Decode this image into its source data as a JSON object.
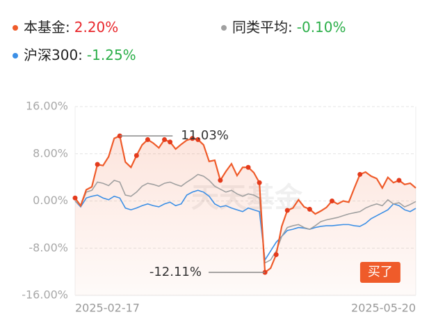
{
  "chart_data": {
    "type": "line",
    "watermark": "天天基金",
    "categories": [
      "2025-02-17",
      null,
      null,
      null,
      null,
      null,
      null,
      null,
      null,
      null,
      null,
      null,
      null,
      null,
      null,
      null,
      null,
      null,
      null,
      null,
      null,
      null,
      null,
      null,
      null,
      null,
      null,
      null,
      null,
      null,
      null,
      null,
      null,
      null,
      null,
      null,
      null,
      null,
      null,
      null,
      null,
      null,
      null,
      null,
      null,
      null,
      null,
      null,
      null,
      null,
      null,
      null,
      null,
      null,
      null,
      null,
      null,
      null,
      null,
      null,
      null,
      "2025-05-20"
    ],
    "series": [
      {
        "name": "本基金:",
        "latest_label": "2.20%",
        "color": "#ef5b2a",
        "label_color": "#e8262b",
        "values": [
          0.5,
          -0.8,
          1.9,
          2.4,
          6.2,
          6.0,
          7.5,
          10.6,
          11.03,
          6.6,
          5.7,
          7.7,
          9.5,
          10.4,
          9.8,
          9.0,
          10.4,
          10.0,
          8.8,
          9.6,
          10.3,
          10.6,
          10.4,
          9.5,
          6.7,
          6.9,
          3.5,
          5.0,
          6.3,
          4.3,
          5.7,
          5.7,
          4.8,
          3.1,
          -12.11,
          -11.4,
          -9.1,
          -4.3,
          -1.6,
          -1.2,
          0.2,
          -1.0,
          -1.4,
          -2.2,
          -1.7,
          -1.1,
          0.0,
          -0.5,
          0.0,
          -0.2,
          2.2,
          4.5,
          4.9,
          4.2,
          3.8,
          2.2,
          4.0,
          3.1,
          3.5,
          2.8,
          3.0,
          2.2
        ]
      },
      {
        "name": "同类平均:",
        "latest_label": "-0.10%",
        "color": "#a0a0a0",
        "label_color": "#2aae48",
        "values": [
          0,
          -0.8,
          1.5,
          1.8,
          3.2,
          3.0,
          2.6,
          3.5,
          3.2,
          1.0,
          0.8,
          1.5,
          2.5,
          3.0,
          2.8,
          2.5,
          3.0,
          3.2,
          2.8,
          2.5,
          3.2,
          3.8,
          4.5,
          4.2,
          3.5,
          2.5,
          2.0,
          1.5,
          1.8,
          1.2,
          0.8,
          1.2,
          1.0,
          0.5,
          -10.5,
          -10.0,
          -8.5,
          -6.0,
          -4.5,
          -4.2,
          -4.0,
          -4.5,
          -4.8,
          -4.2,
          -3.5,
          -3.2,
          -3.0,
          -2.8,
          -2.5,
          -2.2,
          -2.0,
          -1.8,
          -1.2,
          -0.8,
          -0.5,
          -0.8,
          0.2,
          -0.5,
          -0.3,
          -1.0,
          -0.6,
          -0.1
        ]
      },
      {
        "name": "沪深300:",
        "latest_label": "-1.25%",
        "color": "#3b8fe6",
        "label_color": "#2aae48",
        "values": [
          0,
          -1.0,
          0.5,
          0.8,
          1.0,
          0.5,
          0.2,
          0.8,
          0.5,
          -1.2,
          -1.5,
          -1.2,
          -0.8,
          -0.5,
          -0.8,
          -1.0,
          -0.5,
          -0.2,
          -0.8,
          -0.5,
          1.0,
          1.5,
          1.8,
          1.5,
          0.8,
          -0.5,
          -1.0,
          -0.8,
          -1.2,
          -1.5,
          -1.8,
          -1.2,
          -1.5,
          -1.8,
          -10.0,
          -8.5,
          -7.0,
          -6.0,
          -5.0,
          -4.8,
          -4.5,
          -4.6,
          -4.8,
          -4.5,
          -4.3,
          -4.2,
          -4.2,
          -4.1,
          -4.0,
          -4.0,
          -4.2,
          -4.3,
          -3.8,
          -3.0,
          -2.5,
          -2.0,
          -1.5,
          -0.5,
          -0.8,
          -1.5,
          -1.8,
          -1.25
        ]
      }
    ],
    "annotations": [
      {
        "label": "11.03%",
        "value": 11.03
      },
      {
        "label": "-12.11%",
        "value": -12.11
      }
    ],
    "buy_label": "买了",
    "ylim": [
      -16,
      16
    ],
    "yticks": [
      {
        "value": 16,
        "label": "16.00%"
      },
      {
        "value": 8,
        "label": "8.00%"
      },
      {
        "value": 0,
        "label": "0.00%"
      },
      {
        "value": -8,
        "label": "-8.00%"
      },
      {
        "value": -16,
        "label": "-16.00%"
      }
    ],
    "grid": true
  }
}
